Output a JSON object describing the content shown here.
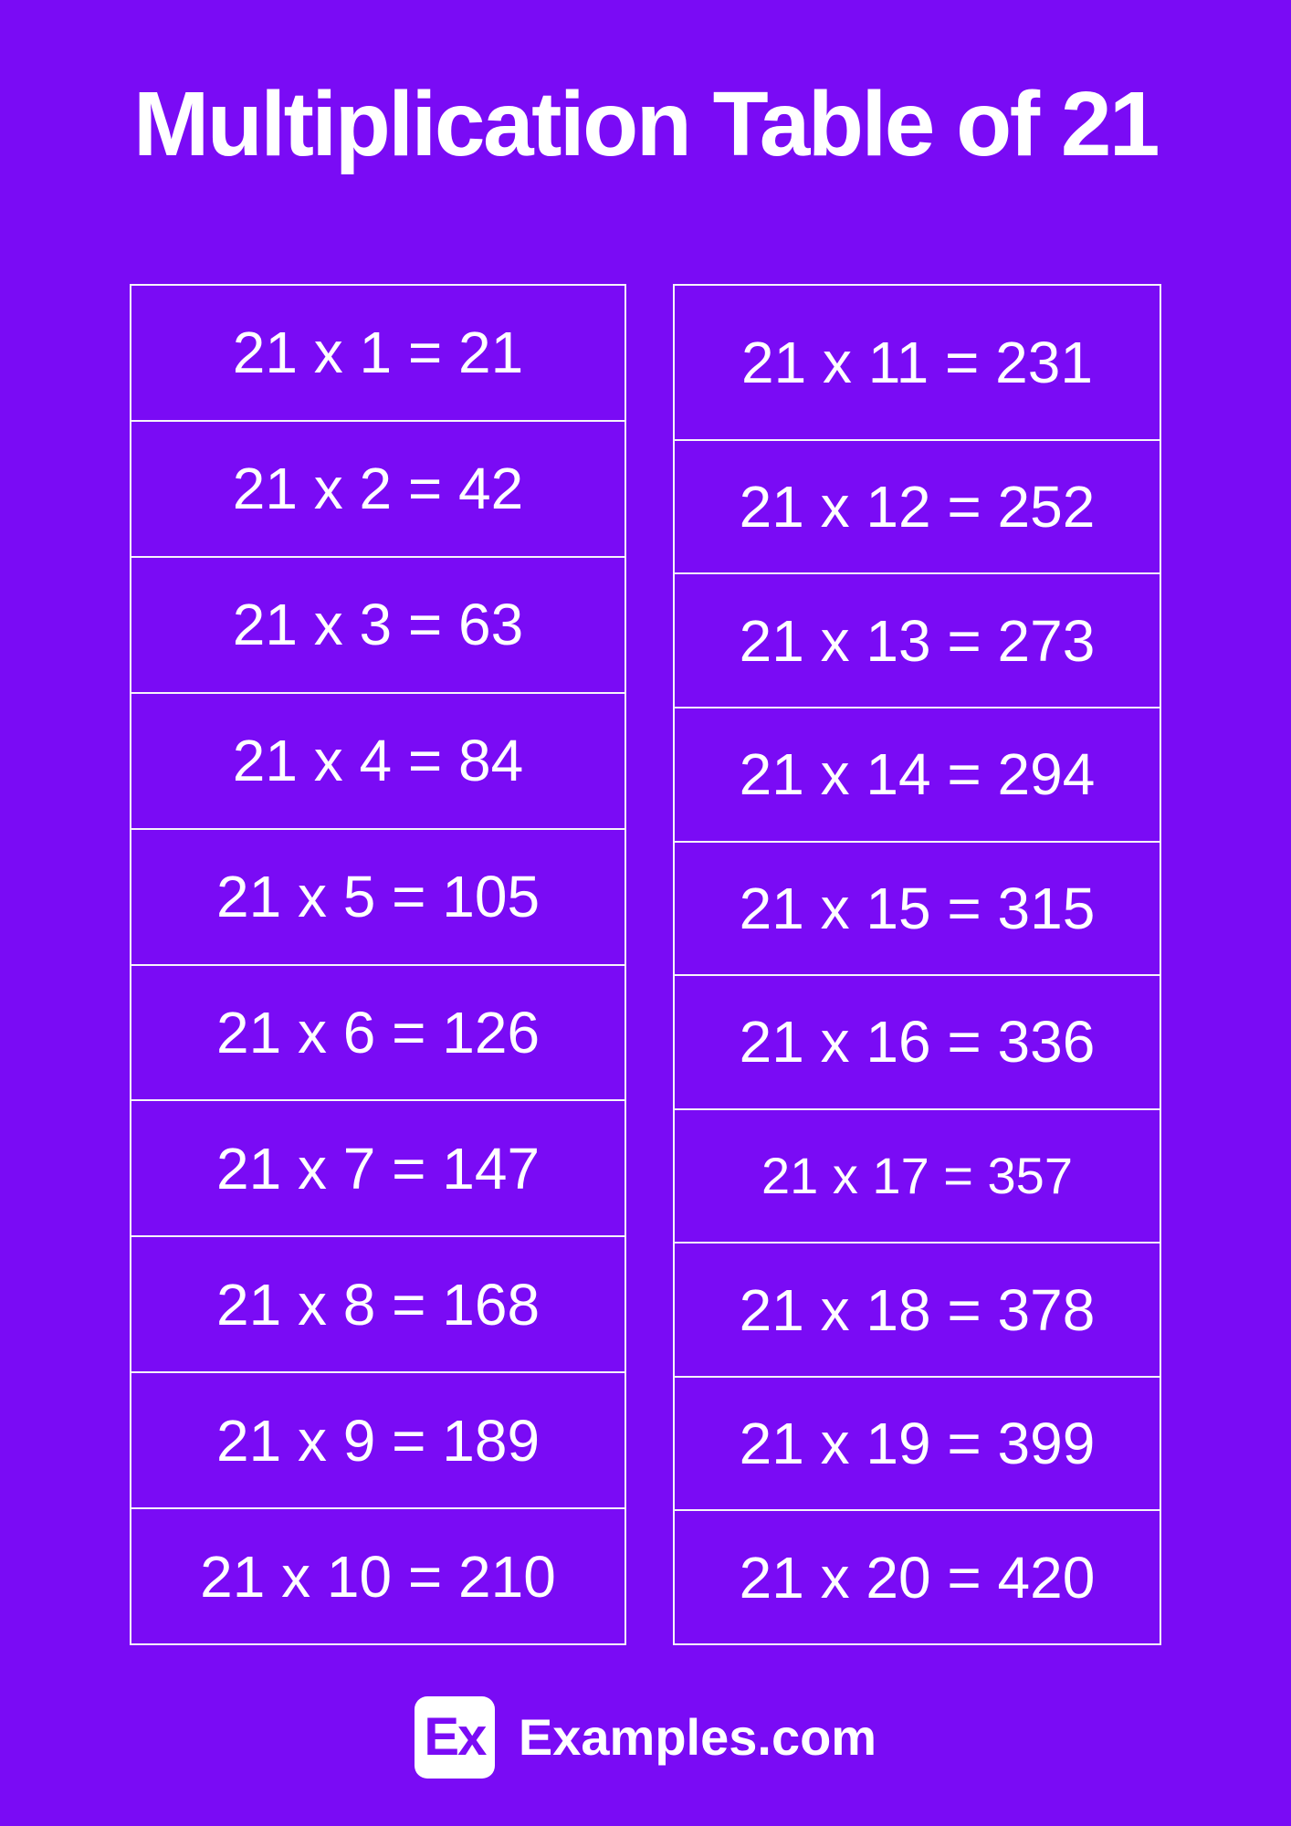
{
  "page": {
    "title": "Multiplication Table of 21",
    "background_color": "#7a0bf5",
    "text_color": "#ffffff",
    "multiplicand": "21"
  },
  "table_left": {
    "rows": [
      "21 x 1 = 21",
      "21 x 2 = 42",
      "21 x 3 = 63",
      "21 x 4 = 84",
      "21 x 5 = 105",
      "21 x 6 = 126",
      "21 x 7 = 147",
      "21 x 8 = 168",
      "21 x 9 = 189",
      "21 x 10 = 210"
    ]
  },
  "table_right": {
    "rows": [
      "21 x 11 = 231",
      "21 x 12 = 252",
      "21 x 13 = 273",
      "21 x 14 = 294",
      "21 x 15 = 315",
      "21 x 16 = 336",
      "21 x 17 = 357",
      "21 x 18 = 378",
      "21 x 19 = 399",
      "21 x 20 = 420"
    ]
  },
  "footer": {
    "logo_abbr": "Ex",
    "brand": "Examples.com"
  }
}
